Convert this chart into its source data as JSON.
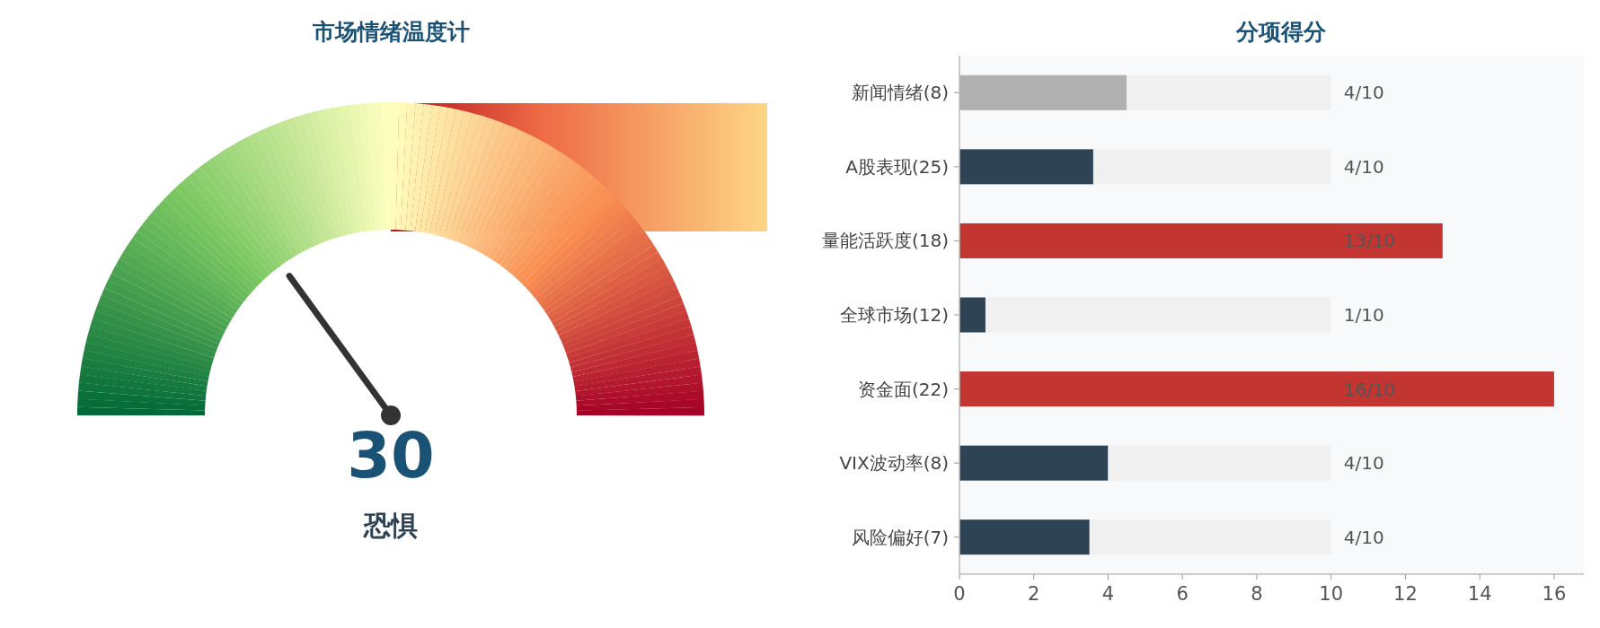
{
  "chart_data": [
    {
      "type": "other",
      "title": "市场情绪温度计",
      "values": [
        30
      ],
      "data_labels": true,
      "annotations": [
        "恐惧"
      ]
    },
    {
      "type": "bar",
      "title": "分项得分",
      "orientation": "horizontal",
      "stacked": true,
      "categories": [
        "新闻情绪(8)",
        "A股表现(25)",
        "量能活跃度(18)",
        "全球市场(12)",
        "资金面(22)",
        "VIX波动率(8)",
        "风险偏好(7)"
      ],
      "series": [
        {
          "colors": [
            "#b0b0b0",
            "#2e4454",
            "#c23531",
            "#2e4454",
            "#c23531",
            "#2e4454",
            "#2e4454"
          ],
          "values": [
            4.5,
            3.6,
            13,
            0.7,
            16,
            4,
            3.5
          ]
        },
        {
          "color": "#f0f0f0",
          "values": [
            5.5,
            6.4,
            null,
            9.3,
            null,
            6,
            6.5
          ]
        }
      ],
      "annotations": [
        "4/10",
        "4/10",
        "13/10",
        "1/10",
        "16/10",
        "4/10",
        "4/10"
      ],
      "xlim": [
        0,
        16.8
      ],
      "xticks": [
        0,
        2,
        4,
        6,
        8,
        10,
        12,
        14,
        16
      ]
    }
  ]
}
